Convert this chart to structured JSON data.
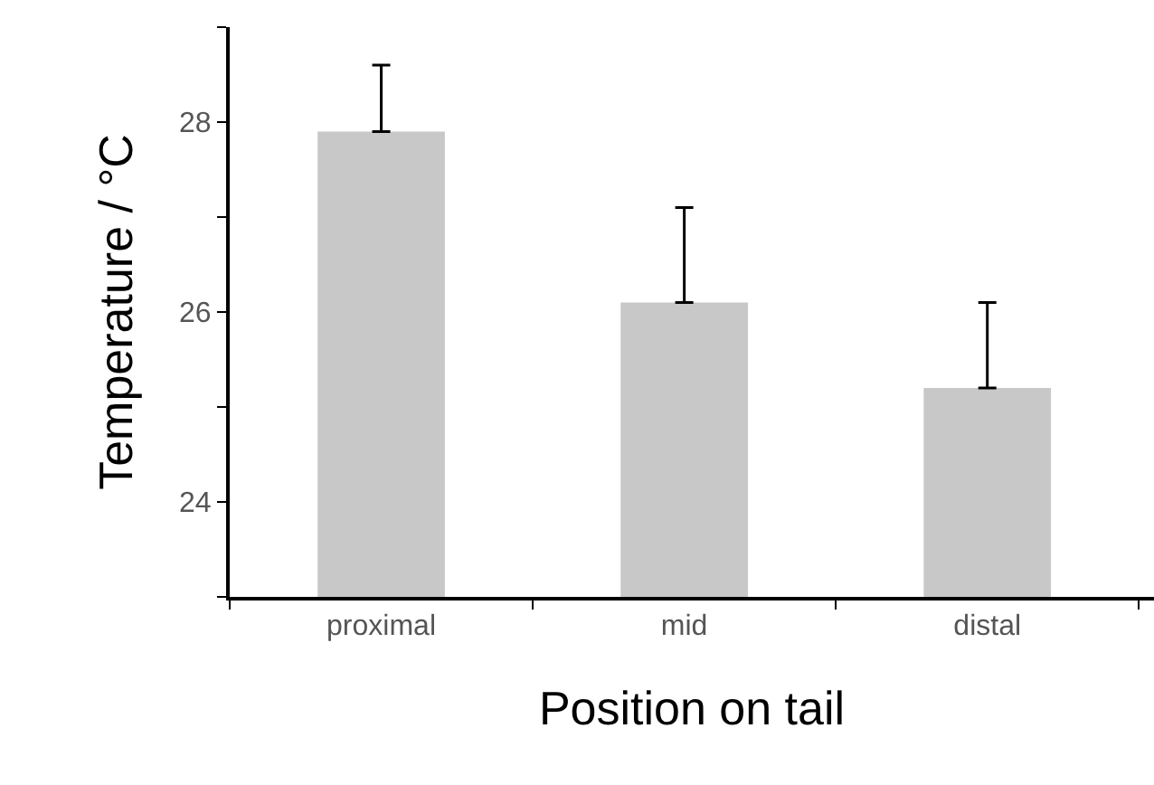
{
  "chart_data": {
    "type": "bar",
    "xlabel": "Position on tail",
    "ylabel": "Temperature / °C",
    "categories": [
      "proximal",
      "mid",
      "distal"
    ],
    "values": [
      27.9,
      26.1,
      25.2
    ],
    "errors": [
      [
        27.9,
        28.6
      ],
      [
        26.1,
        27.1
      ],
      [
        25.2,
        26.1
      ]
    ],
    "color": "#c8c8c8",
    "ylim": [
      23,
      29
    ],
    "yticks": [
      {
        "value": 23,
        "label": null
      },
      24,
      {
        "value": 25,
        "label": null
      },
      26,
      {
        "value": 27,
        "label": null
      },
      28,
      {
        "value": 29,
        "label": null
      }
    ]
  }
}
